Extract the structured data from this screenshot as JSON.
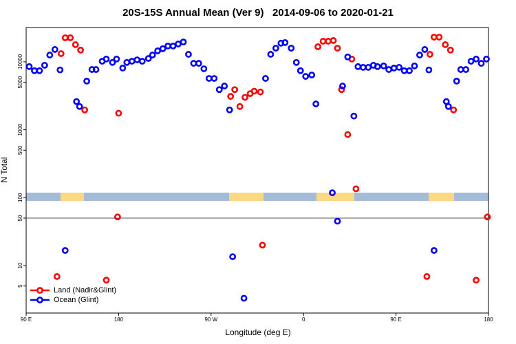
{
  "chart_data": {
    "type": "scatter",
    "title": "20S-15S Annual Mean (Ver 9)   2014-09-06 to 2020-01-21",
    "xlabel": "Longitude (deg E)",
    "ylabel": "N Total",
    "xlim": [
      90,
      540
    ],
    "xticks": [
      {
        "value": 90,
        "label": "90 E"
      },
      {
        "value": 180,
        "label": "180"
      },
      {
        "value": 270,
        "label": "90 W"
      },
      {
        "value": 360,
        "label": "0"
      },
      {
        "value": 450,
        "label": "90 E"
      },
      {
        "value": 540,
        "label": "180"
      }
    ],
    "ylim": [
      2,
      32000
    ],
    "log_y": true,
    "yticks": [
      5,
      10,
      50,
      100,
      500,
      1000,
      5000,
      10000
    ],
    "hline": 50,
    "legend": "lower left",
    "series": [
      {
        "name": "Land (Nadir&Glint)",
        "color": "#ff0000",
        "x": [
          120,
          124,
          128,
          133,
          138,
          143,
          147,
          168,
          179,
          180,
          289,
          293,
          298,
          303,
          308,
          312,
          318,
          320,
          374,
          379,
          384,
          389,
          393,
          397,
          403,
          407,
          411,
          480,
          483,
          487,
          492,
          498,
          503,
          506,
          528,
          539
        ],
        "values": [
          6.9,
          13200,
          22600,
          22600,
          17900,
          14900,
          1960,
          6.1,
          52,
          1750,
          3100,
          3900,
          2200,
          3000,
          3400,
          3700,
          3600,
          20,
          16700,
          20100,
          20100,
          20600,
          15900,
          3900,
          850,
          11000,
          135,
          6.9,
          12900,
          23100,
          23100,
          17900,
          14900,
          1960,
          6.1,
          52
        ]
      },
      {
        "name": "Ocean (Glint)",
        "color": "#0000ff",
        "x": [
          93,
          98,
          103,
          108,
          113,
          118,
          123,
          128,
          139,
          142,
          149,
          154,
          158,
          164,
          168,
          174,
          178,
          184,
          188,
          193,
          198,
          203,
          209,
          213,
          218,
          223,
          228,
          233,
          238,
          243,
          248,
          253,
          258,
          263,
          268,
          273,
          278,
          283,
          288,
          291,
          302,
          323,
          328,
          333,
          338,
          342,
          348,
          353,
          357,
          362,
          368,
          372,
          388,
          393,
          398,
          403,
          409,
          413,
          418,
          423,
          428,
          432,
          438,
          443,
          448,
          453,
          458,
          463,
          468,
          473,
          478,
          482,
          487,
          499,
          501,
          509,
          513,
          518,
          523,
          528,
          533,
          538
        ],
        "values": [
          8500,
          7400,
          7400,
          8900,
          12600,
          15200,
          7600,
          16.7,
          2600,
          2200,
          5200,
          7700,
          7700,
          10200,
          11000,
          9800,
          11000,
          8100,
          9800,
          10200,
          10700,
          10200,
          11200,
          12600,
          14500,
          15600,
          17100,
          17100,
          18300,
          19600,
          12900,
          9500,
          9500,
          7900,
          5700,
          5700,
          3900,
          4400,
          1960,
          13.5,
          3.3,
          5700,
          12900,
          15900,
          18800,
          19200,
          15900,
          9800,
          7400,
          6100,
          6400,
          2400,
          118,
          45,
          4400,
          11800,
          1590,
          8500,
          8300,
          8300,
          8900,
          8500,
          8700,
          7700,
          8100,
          8300,
          7400,
          7400,
          8700,
          12600,
          15200,
          7600,
          16.7,
          2600,
          2200,
          5200,
          7700,
          7700,
          10200,
          11000,
          9500,
          11000
        ]
      }
    ]
  }
}
